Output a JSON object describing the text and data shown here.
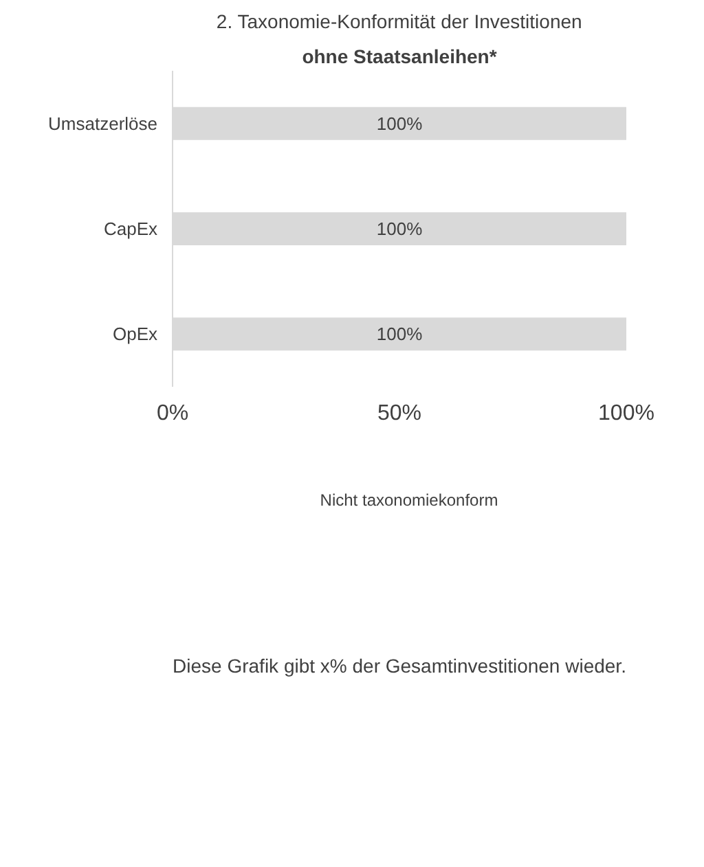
{
  "chart_data": {
    "type": "bar",
    "orientation": "horizontal",
    "title": "2. Taxonomie-Konformität der Investitionen",
    "subtitle": "ohne Staatsanleihen*",
    "categories": [
      "Umsatzerlöse",
      "CapEx",
      "OpEx"
    ],
    "series": [
      {
        "name": "Nicht taxonomiekonform",
        "color": "#d9d9d9",
        "values": [
          100,
          100,
          100
        ],
        "value_labels": [
          "100%",
          "100%",
          "100%"
        ]
      }
    ],
    "xlim": [
      0,
      100
    ],
    "xticks": [
      {
        "value": 0,
        "label": "0%"
      },
      {
        "value": 50,
        "label": "50%"
      },
      {
        "value": 100,
        "label": "100%"
      }
    ],
    "legend": "bottom",
    "annotations": [
      "Diese Grafik gibt x% der Gesamtinvestitionen wieder."
    ]
  }
}
